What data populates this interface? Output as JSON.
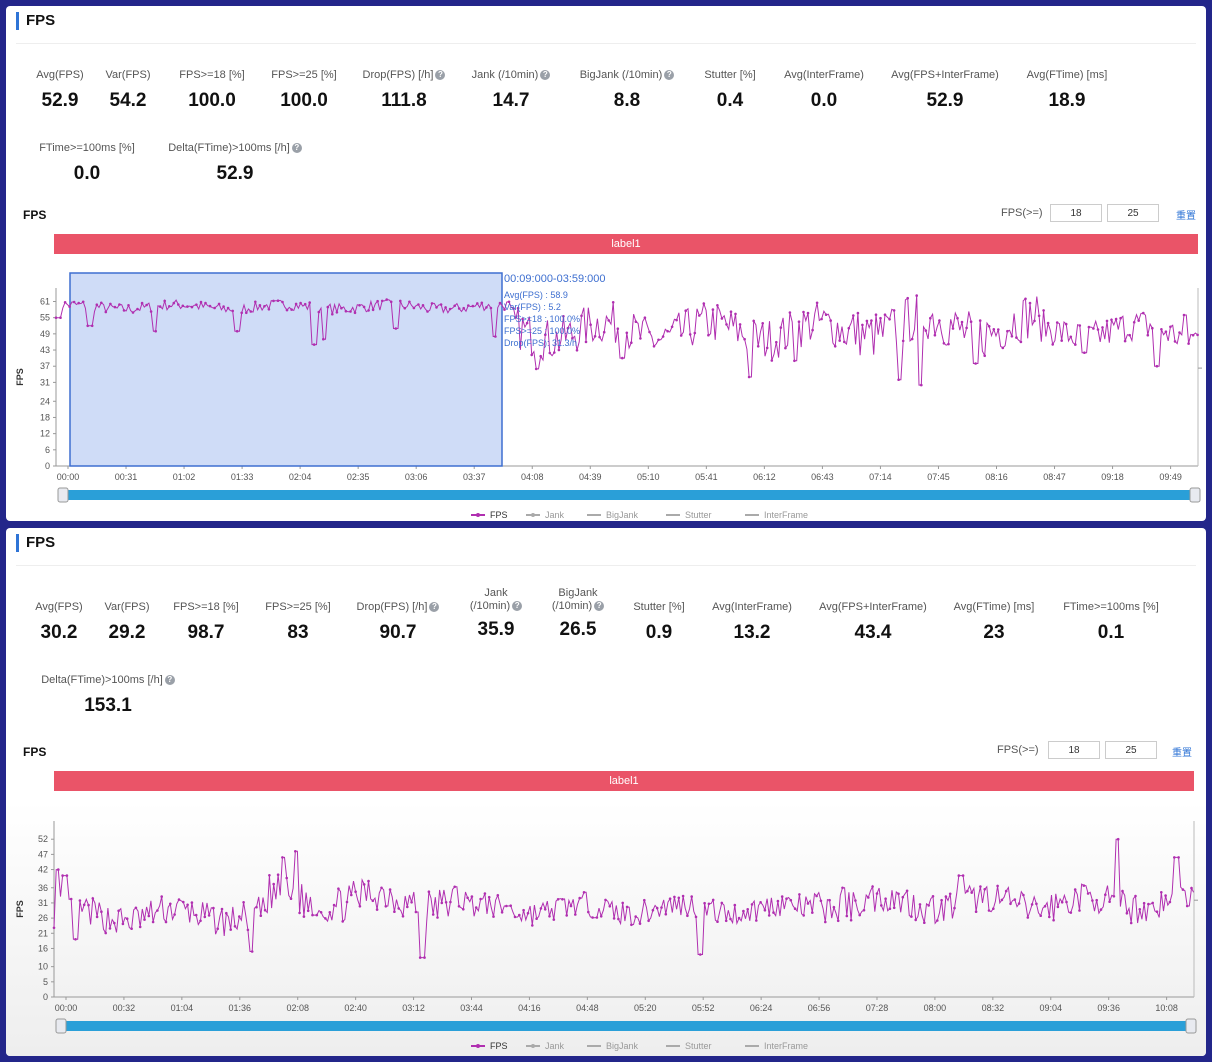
{
  "panels": [
    {
      "title": "FPS",
      "metrics": [
        {
          "label": "Avg(FPS)",
          "value": "52.9",
          "help": false
        },
        {
          "label": "Var(FPS)",
          "value": "54.2",
          "help": false
        },
        {
          "label": "FPS>=18 [%]",
          "value": "100.0",
          "help": false
        },
        {
          "label": "FPS>=25 [%]",
          "value": "100.0",
          "help": false
        },
        {
          "label": "Drop(FPS) [/h]",
          "value": "111.8",
          "help": true
        },
        {
          "label": "Jank (/10min)",
          "value": "14.7",
          "help": true
        },
        {
          "label": "BigJank (/10min)",
          "value": "8.8",
          "help": true
        },
        {
          "label": "Stutter [%]",
          "value": "0.4",
          "help": false
        },
        {
          "label": "Avg(InterFrame)",
          "value": "0.0",
          "help": false
        },
        {
          "label": "Avg(FPS+InterFrame)",
          "value": "52.9",
          "help": false
        },
        {
          "label": "Avg(FTime) [ms]",
          "value": "18.9",
          "help": false
        },
        {
          "label": "FTime>=100ms [%]",
          "value": "0.0",
          "help": false
        },
        {
          "label": "Delta(FTime)>100ms [/h]",
          "value": "52.9",
          "help": true
        }
      ],
      "chart_title": "FPS",
      "fps_label": "FPS(>=)",
      "fps_low": "18",
      "fps_high": "25",
      "reset": "重置",
      "band_label": "label1",
      "legend": [
        "FPS",
        "Jank",
        "BigJank",
        "Stutter",
        "InterFrame"
      ],
      "tooltip": [
        "00:09:000-03:59:000",
        "Avg(FPS) : 58.9",
        "Var(FPS) : 5.2",
        "FPS>=18 : 100.0%",
        "FPS>=25 : 100.0%",
        "Drop(FPS): 31.3/h"
      ]
    },
    {
      "title": "FPS",
      "metrics": [
        {
          "label": "Avg(FPS)",
          "value": "30.2",
          "help": false
        },
        {
          "label": "Var(FPS)",
          "value": "29.2",
          "help": false
        },
        {
          "label": "FPS>=18 [%]",
          "value": "98.7",
          "help": false
        },
        {
          "label": "FPS>=25 [%]",
          "value": "83",
          "help": false
        },
        {
          "label": "Drop(FPS) [/h]",
          "value": "90.7",
          "help": true
        },
        {
          "label": "Jank\n(/10min)",
          "value": "35.9",
          "help": true
        },
        {
          "label": "BigJank\n(/10min)",
          "value": "26.5",
          "help": true
        },
        {
          "label": "Stutter [%]",
          "value": "0.9",
          "help": false
        },
        {
          "label": "Avg(InterFrame)",
          "value": "13.2",
          "help": false
        },
        {
          "label": "Avg(FPS+InterFrame)",
          "value": "43.4",
          "help": false
        },
        {
          "label": "Avg(FTime) [ms]",
          "value": "23",
          "help": false
        },
        {
          "label": "FTime>=100ms [%]",
          "value": "0.1",
          "help": false
        },
        {
          "label": "Delta(FTime)>100ms [/h]",
          "value": "153.1",
          "help": true
        }
      ],
      "chart_title": "FPS",
      "fps_label": "FPS(>=)",
      "fps_low": "18",
      "fps_high": "25",
      "reset": "重置",
      "band_label": "label1",
      "legend": [
        "FPS",
        "Jank",
        "BigJank",
        "Stutter",
        "InterFrame"
      ]
    }
  ],
  "chart_data": [
    {
      "type": "line",
      "ylabel": "FPS",
      "yticks": [
        0,
        6,
        12,
        18,
        24,
        31,
        37,
        43,
        49,
        55,
        61
      ],
      "ylim": [
        0,
        66
      ],
      "xticks": [
        "00:00",
        "00:31",
        "01:02",
        "01:33",
        "02:04",
        "02:35",
        "03:06",
        "03:37",
        "04:08",
        "04:39",
        "05:10",
        "05:41",
        "06:12",
        "06:43",
        "07:14",
        "07:45",
        "08:16",
        "08:47",
        "09:18",
        "09:49"
      ],
      "x_range_seconds": [
        0,
        605
      ],
      "selection": {
        "from": "00:09",
        "to": "03:59"
      },
      "series": [
        {
          "name": "FPS",
          "color": "#b02fb0",
          "segments": [
            {
              "from": 0,
              "to": 240,
              "base": 59,
              "noise": 2,
              "dips": [
                [
                  1,
                  55
                ],
                [
                  18,
                  52
                ],
                [
                  52,
                  50
                ],
                [
                  96,
                  50
                ],
                [
                  137,
                  45
                ],
                [
                  142,
                  47
                ],
                [
                  180,
                  51
                ],
                [
                  232,
                  48
                ]
              ]
            },
            {
              "from": 240,
              "to": 420,
              "base": 50,
              "noise": 8,
              "dips": [
                [
                  255,
                  36
                ],
                [
                  300,
                  40
                ],
                [
                  368,
                  33
                ],
                [
                  392,
                  39
                ]
              ]
            },
            {
              "from": 420,
              "to": 520,
              "base": 52,
              "noise": 9,
              "dips": [
                [
                  447,
                  32
                ],
                [
                  458,
                  30
                ],
                [
                  487,
                  38
                ]
              ]
            },
            {
              "from": 520,
              "to": 605,
              "base": 50,
              "noise": 6,
              "dips": [
                [
                  545,
                  42
                ],
                [
                  583,
                  37
                ],
                [
                  598,
                  56
                ]
              ]
            }
          ]
        }
      ]
    },
    {
      "type": "line",
      "ylabel": "FPS",
      "yticks": [
        0,
        5,
        10,
        16,
        21,
        26,
        31,
        36,
        42,
        47,
        52
      ],
      "ylim": [
        0,
        58
      ],
      "xticks": [
        "00:00",
        "00:32",
        "01:04",
        "01:36",
        "02:08",
        "02:40",
        "03:12",
        "03:44",
        "04:16",
        "04:48",
        "05:20",
        "05:52",
        "06:24",
        "06:56",
        "07:28",
        "08:00",
        "08:32",
        "09:04",
        "09:36",
        "10:08"
      ],
      "x_range_seconds": [
        0,
        635
      ],
      "series": [
        {
          "name": "FPS",
          "color": "#b02fb0",
          "segments": [
            {
              "from": 0,
              "to": 120,
              "base": 27,
              "noise": 5,
              "dips": [
                [
                  2,
                  42
                ],
                [
                  6,
                  40
                ],
                [
                  12,
                  19
                ],
                [
                  110,
                  15
                ]
              ]
            },
            {
              "from": 120,
              "to": 230,
              "base": 32,
              "noise": 6,
              "dips": [
                [
                  128,
                  46
                ],
                [
                  135,
                  48
                ],
                [
                  145,
                  27
                ],
                [
                  205,
                  13
                ]
              ]
            },
            {
              "from": 230,
              "to": 420,
              "base": 29,
              "noise": 4,
              "dips": [
                [
                  226,
                  14
                ],
                [
                  252,
                  30
                ],
                [
                  360,
                  14
                ]
              ]
            },
            {
              "from": 420,
              "to": 635,
              "base": 31,
              "noise": 5,
              "dips": [
                [
                  440,
                  36
                ],
                [
                  505,
                  40
                ],
                [
                  592,
                  52
                ],
                [
                  625,
                  46
                ],
                [
                  632,
                  30
                ]
              ]
            }
          ]
        }
      ]
    }
  ]
}
